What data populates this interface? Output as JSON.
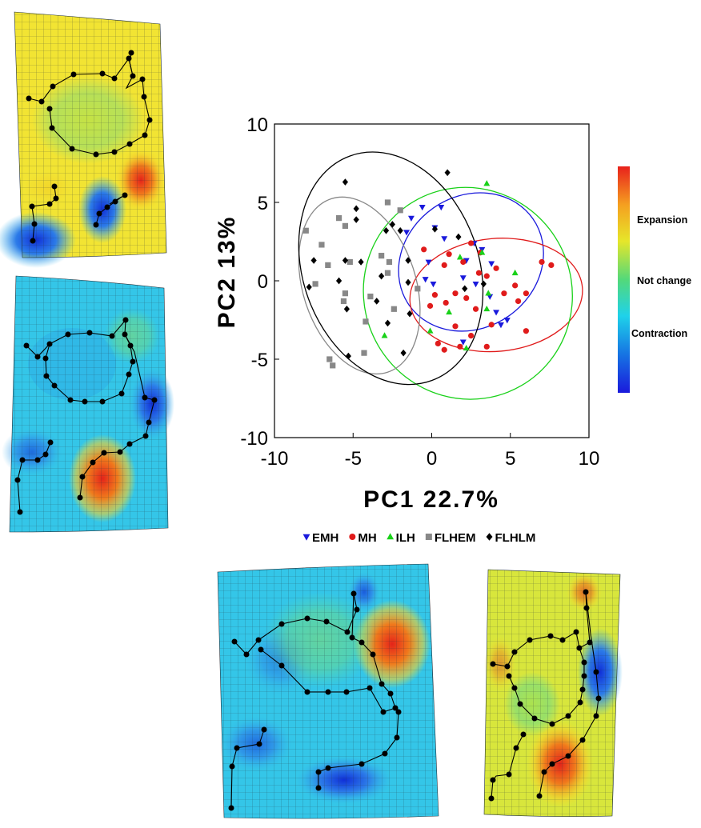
{
  "chart_data": {
    "type": "scatter",
    "xlabel": "PC1 22.7%",
    "ylabel": "PC2 13%",
    "xlim": [
      -10,
      10
    ],
    "ylim": [
      -10,
      10
    ],
    "xticks": [
      "-10",
      "-5",
      "0",
      "5",
      "10"
    ],
    "yticks": [
      "10",
      "5",
      "0",
      "-5",
      "-10"
    ],
    "grid": false,
    "legend_position": "bottom",
    "series": [
      {
        "name": "EMH",
        "marker": "triangle-down",
        "color": "#1a1adc",
        "points": [
          [
            -0.6,
            4.7
          ],
          [
            0.6,
            4.7
          ],
          [
            -1.3,
            4.0
          ],
          [
            -1.6,
            3.1
          ],
          [
            0.2,
            3.4
          ],
          [
            0.8,
            2.7
          ],
          [
            2.7,
            2.4
          ],
          [
            3.2,
            2.0
          ],
          [
            2.2,
            1.3
          ],
          [
            3.8,
            1.1
          ],
          [
            -0.2,
            1.2
          ],
          [
            0.1,
            -0.2
          ],
          [
            -0.4,
            0.1
          ],
          [
            2.0,
            0.2
          ],
          [
            2.8,
            -0.2
          ],
          [
            3.7,
            -1.0
          ],
          [
            4.1,
            -2.0
          ],
          [
            4.4,
            -2.8
          ],
          [
            4.8,
            -2.5
          ],
          [
            2.0,
            -3.9
          ]
        ]
      },
      {
        "name": "MH",
        "marker": "circle",
        "color": "#e01b1b",
        "points": [
          [
            2.5,
            2.4
          ],
          [
            3.1,
            1.8
          ],
          [
            -0.5,
            2.0
          ],
          [
            0.8,
            1.0
          ],
          [
            1.1,
            1.7
          ],
          [
            2.0,
            1.2
          ],
          [
            3.0,
            0.5
          ],
          [
            3.5,
            0.3
          ],
          [
            4.1,
            0.8
          ],
          [
            5.3,
            -0.3
          ],
          [
            6.0,
            -0.8
          ],
          [
            7.0,
            1.2
          ],
          [
            7.6,
            1.0
          ],
          [
            0.2,
            -0.9
          ],
          [
            -0.1,
            -1.6
          ],
          [
            0.9,
            -1.4
          ],
          [
            1.5,
            -0.8
          ],
          [
            2.2,
            -1.1
          ],
          [
            2.8,
            -1.8
          ],
          [
            4.6,
            -0.8
          ],
          [
            5.5,
            -1.3
          ],
          [
            3.8,
            -2.8
          ],
          [
            6.0,
            -3.2
          ],
          [
            1.5,
            -2.9
          ],
          [
            2.5,
            -3.5
          ],
          [
            1.8,
            -4.2
          ],
          [
            0.4,
            -4.0
          ],
          [
            0.8,
            -4.4
          ],
          [
            3.5,
            -4.2
          ]
        ]
      },
      {
        "name": "ILH",
        "marker": "triangle-up",
        "color": "#19d119",
        "points": [
          [
            3.5,
            6.2
          ],
          [
            1.8,
            1.5
          ],
          [
            3.2,
            1.8
          ],
          [
            3.6,
            -0.8
          ],
          [
            5.3,
            0.5
          ],
          [
            3.5,
            -1.8
          ],
          [
            1.1,
            -2.0
          ],
          [
            -3.0,
            -3.5
          ],
          [
            -0.1,
            -3.2
          ],
          [
            2.2,
            -4.3
          ]
        ]
      },
      {
        "name": "FLHEM",
        "marker": "square",
        "color": "#888888",
        "points": [
          [
            -8.0,
            3.2
          ],
          [
            -5.9,
            4.0
          ],
          [
            -5.5,
            3.5
          ],
          [
            -2.8,
            5.0
          ],
          [
            -2.0,
            4.5
          ],
          [
            -7.0,
            2.3
          ],
          [
            -6.6,
            1.0
          ],
          [
            -5.2,
            1.2
          ],
          [
            -3.2,
            1.6
          ],
          [
            -2.7,
            1.2
          ],
          [
            -7.4,
            -0.2
          ],
          [
            -5.6,
            -1.3
          ],
          [
            -5.5,
            -0.8
          ],
          [
            -3.9,
            -1.0
          ],
          [
            -4.2,
            -2.6
          ],
          [
            -2.4,
            -1.8
          ],
          [
            -4.3,
            -4.6
          ],
          [
            -6.5,
            -5.0
          ],
          [
            -6.3,
            -5.4
          ],
          [
            -0.9,
            -0.5
          ],
          [
            -2.8,
            0.5
          ]
        ]
      },
      {
        "name": "FLHLM",
        "marker": "diamond",
        "color": "#000000",
        "points": [
          [
            -5.5,
            6.3
          ],
          [
            1.0,
            6.9
          ],
          [
            -4.8,
            4.6
          ],
          [
            -4.8,
            3.9
          ],
          [
            -2.5,
            3.6
          ],
          [
            -2.0,
            3.2
          ],
          [
            -2.9,
            3.2
          ],
          [
            0.2,
            3.3
          ],
          [
            -7.5,
            1.3
          ],
          [
            -5.5,
            1.3
          ],
          [
            -4.5,
            1.2
          ],
          [
            -1.5,
            1.3
          ],
          [
            -3.2,
            0.3
          ],
          [
            -5.9,
            0.0
          ],
          [
            -7.8,
            -0.4
          ],
          [
            -1.5,
            -0.1
          ],
          [
            -3.5,
            -1.3
          ],
          [
            -5.4,
            -1.8
          ],
          [
            -2.8,
            -2.7
          ],
          [
            -1.4,
            -2.1
          ],
          [
            -5.3,
            -4.8
          ],
          [
            -1.8,
            -4.6
          ],
          [
            1.7,
            2.8
          ],
          [
            2.1,
            -0.5
          ],
          [
            3.3,
            -0.2
          ]
        ]
      }
    ],
    "ellipses": [
      {
        "series": "EMH",
        "color": "#1a1adc",
        "center": [
          2.5,
          1.2
        ],
        "radii": [
          4.8,
          4.2
        ],
        "rotation_deg": -35
      },
      {
        "series": "MH",
        "color": "#e01b1b",
        "center": [
          4.1,
          -0.9
        ],
        "radii": [
          5.5,
          3.6
        ],
        "rotation_deg": -5
      },
      {
        "series": "ILH",
        "color": "#19d119",
        "center": [
          2.3,
          -0.8
        ],
        "radii": [
          6.6,
          6.8
        ],
        "rotation_deg": -30
      },
      {
        "series": "FLHEM",
        "color": "#888888",
        "center": [
          -4.6,
          -0.3
        ],
        "radii": [
          5.8,
          3.6
        ],
        "rotation_deg": 72
      },
      {
        "series": "FLHLM",
        "color": "#000000",
        "center": [
          -2.6,
          0.8
        ],
        "radii": [
          7.6,
          5.6
        ],
        "rotation_deg": 70
      }
    ]
  },
  "colorbar": {
    "labels": [
      {
        "text": "Expansion",
        "pos": 0.26
      },
      {
        "text": "Not change",
        "pos": 0.5
      },
      {
        "text": "Contraction",
        "pos": 0.74
      }
    ],
    "colors": [
      "#e8211c",
      "#f5a020",
      "#e6e62a",
      "#53d97a",
      "#1fd2ea",
      "#1674e3",
      "#1a1adc"
    ]
  },
  "grid_panels": {
    "base_colors": [
      "#f2e433",
      "#34c6e8",
      "#34c6e8",
      "#d8e63c"
    ]
  }
}
